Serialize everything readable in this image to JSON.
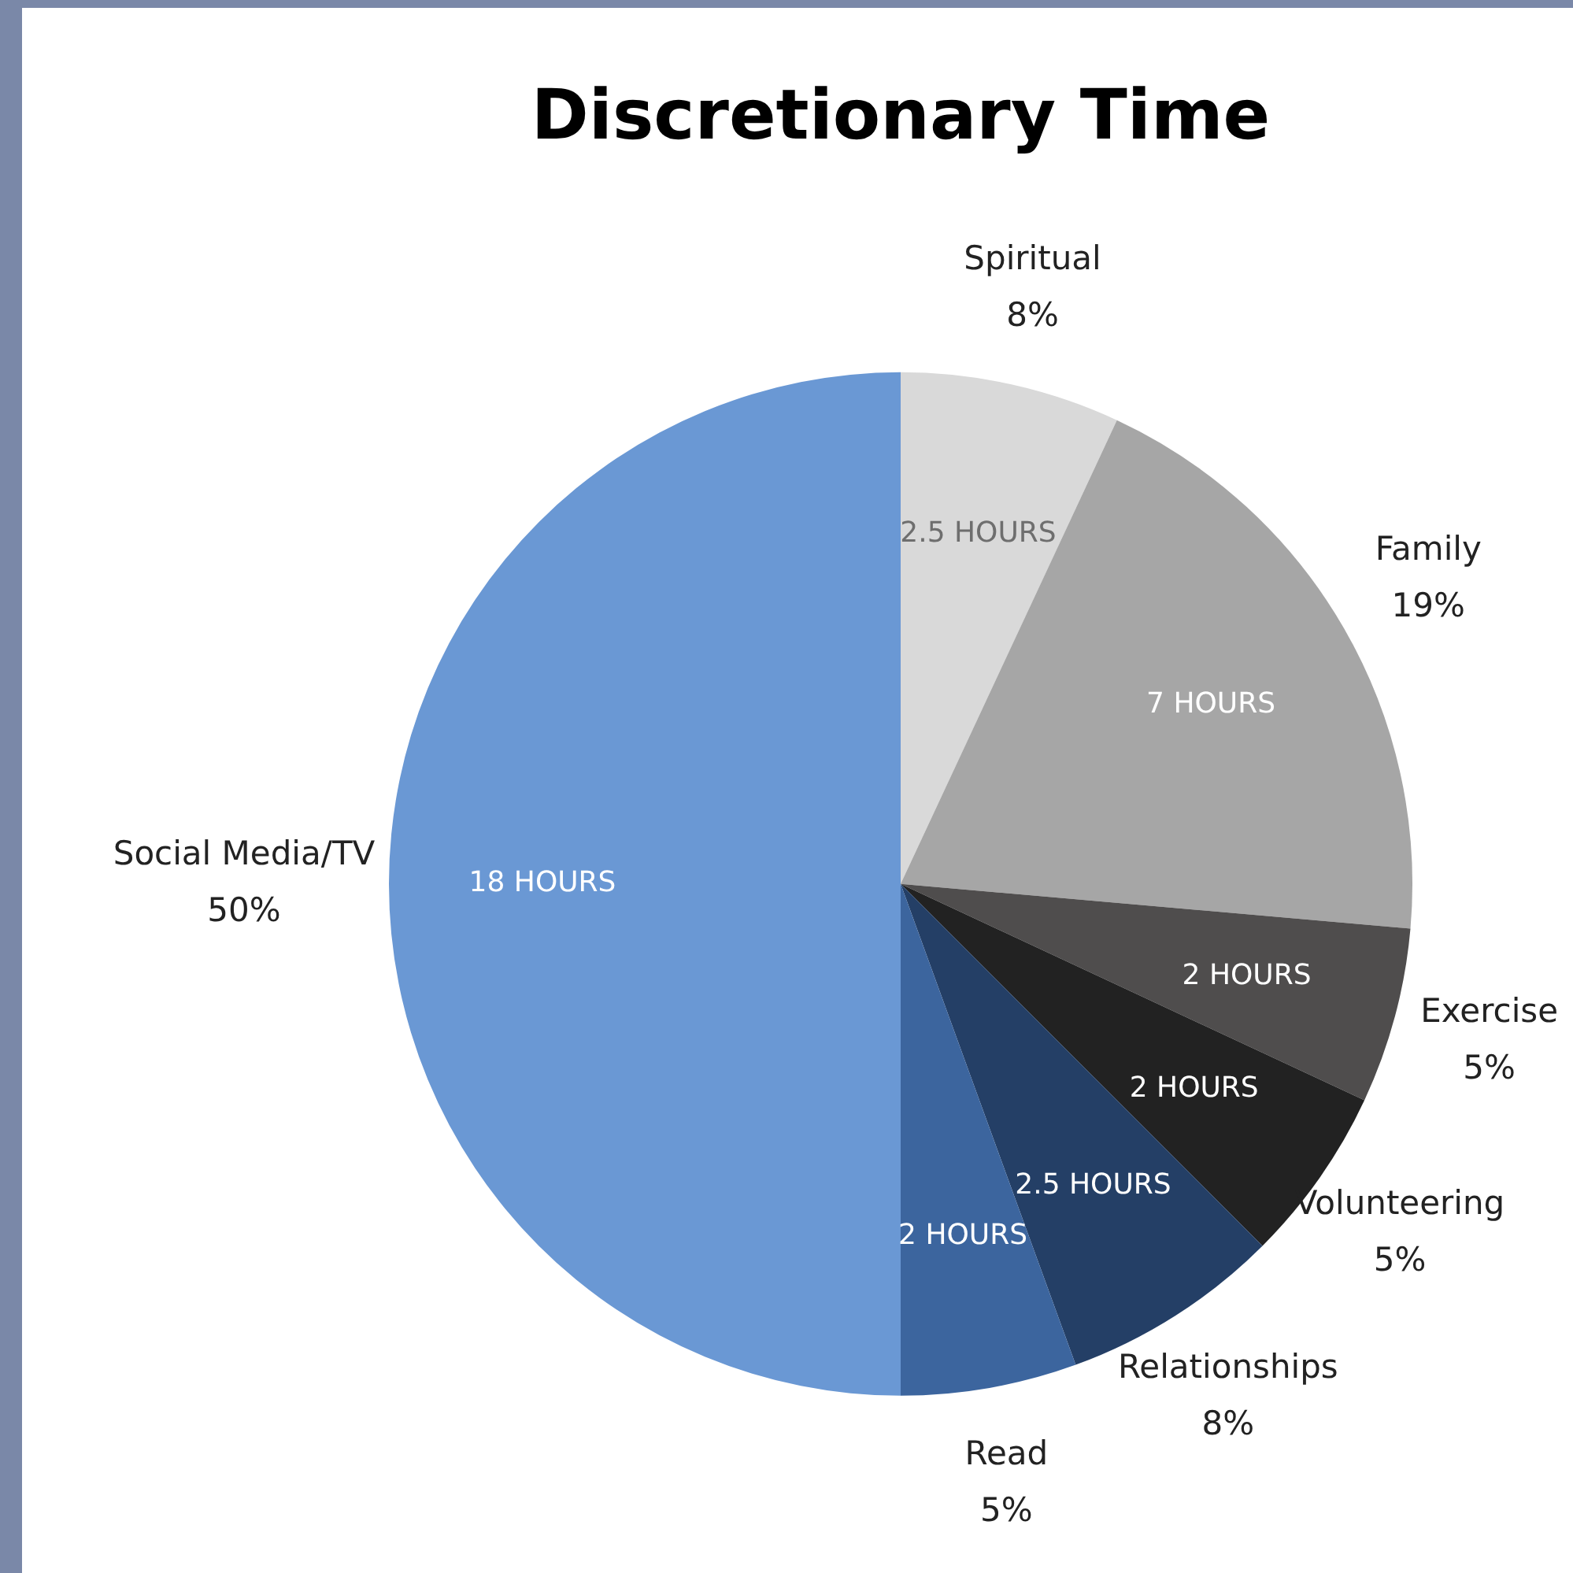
{
  "chart_data": {
    "type": "pie",
    "title": "Discretionary Time",
    "categories": [
      "Spiritual",
      "Family",
      "Exercise",
      "Volunteering",
      "Relationships",
      "Read",
      "Social Media/TV"
    ],
    "values": [
      2.5,
      7,
      2,
      2,
      2.5,
      2,
      18
    ],
    "value_labels": [
      "2.5 HOURS",
      "7 HOURS",
      "2 HOURS",
      "2 HOURS",
      "2.5 HOURS",
      "2 HOURS",
      "18 HOURS"
    ],
    "colors": [
      "#d9d9d9",
      "#a6a6a6",
      "#4f4d4d",
      "#222222",
      "#243f66",
      "#3c659e",
      "#6a98d4"
    ],
    "annotations": [
      {
        "text": "8%",
        "x": "Spiritual"
      },
      {
        "text": "19%",
        "x": "Family"
      },
      {
        "text": "5%",
        "x": "Exercise"
      },
      {
        "text": "5%",
        "x": "Volunteering"
      },
      {
        "text": "8%",
        "x": "Relationships"
      },
      {
        "text": "5%",
        "x": "Read"
      },
      {
        "text": "50%",
        "x": "Social Media/TV"
      }
    ],
    "legend": false
  }
}
